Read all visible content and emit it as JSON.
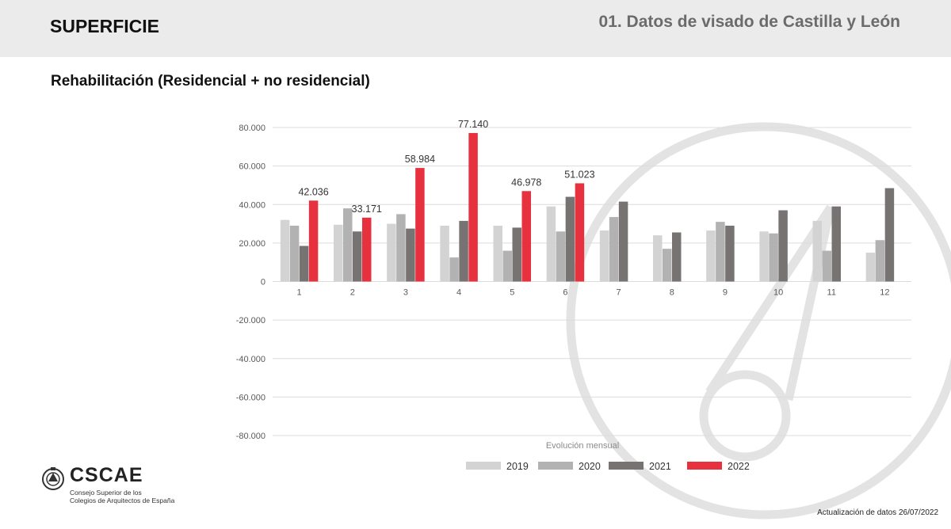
{
  "header": {
    "section": "SUPERFICIE",
    "title": "01. Datos de visado de Castilla y León"
  },
  "subtitle": "Rehabilitación (Residencial + no residencial)",
  "chart_data": {
    "type": "bar",
    "title": "",
    "xlabel": "Evolución mensual",
    "ylabel": "",
    "ylim": [
      -80000,
      80000
    ],
    "ytick_step": 20000,
    "ytick_labels": [
      "80.000",
      "60.000",
      "40.000",
      "20.000",
      "0",
      "-20.000",
      "-40.000",
      "-60.000",
      "-80.000"
    ],
    "grid": true,
    "legend_position": "bottom",
    "categories": [
      "1",
      "2",
      "3",
      "4",
      "5",
      "6",
      "7",
      "8",
      "9",
      "10",
      "11",
      "12"
    ],
    "series": [
      {
        "name": "2019",
        "color": "#d3d3d3",
        "values": [
          32000,
          29500,
          30000,
          29000,
          29000,
          39000,
          26500,
          24000,
          26500,
          26000,
          31500,
          15000
        ],
        "labels": []
      },
      {
        "name": "2020",
        "color": "#b2b2b2",
        "values": [
          29000,
          38000,
          35000,
          12500,
          16000,
          26000,
          33500,
          17000,
          31000,
          25000,
          16000,
          21500
        ],
        "labels": []
      },
      {
        "name": "2021",
        "color": "#777373",
        "values": [
          18500,
          26000,
          27500,
          31500,
          28000,
          44000,
          41500,
          25500,
          29000,
          37000,
          39000,
          48500
        ],
        "labels": []
      },
      {
        "name": "2022",
        "color": "#e8313f",
        "values": [
          42036,
          33171,
          58984,
          77140,
          46978,
          51023,
          null,
          null,
          null,
          null,
          null,
          null
        ],
        "labels": [
          "42.036",
          "33.171",
          "58.984",
          "77.140",
          "46.978",
          "51.023"
        ]
      }
    ]
  },
  "logo": {
    "name": "CSCAE",
    "line1": "Consejo Superior de los",
    "line2": "Colegios de Arquitectos de España"
  },
  "footer": {
    "update": "Actualización de datos 26/07/2022"
  }
}
